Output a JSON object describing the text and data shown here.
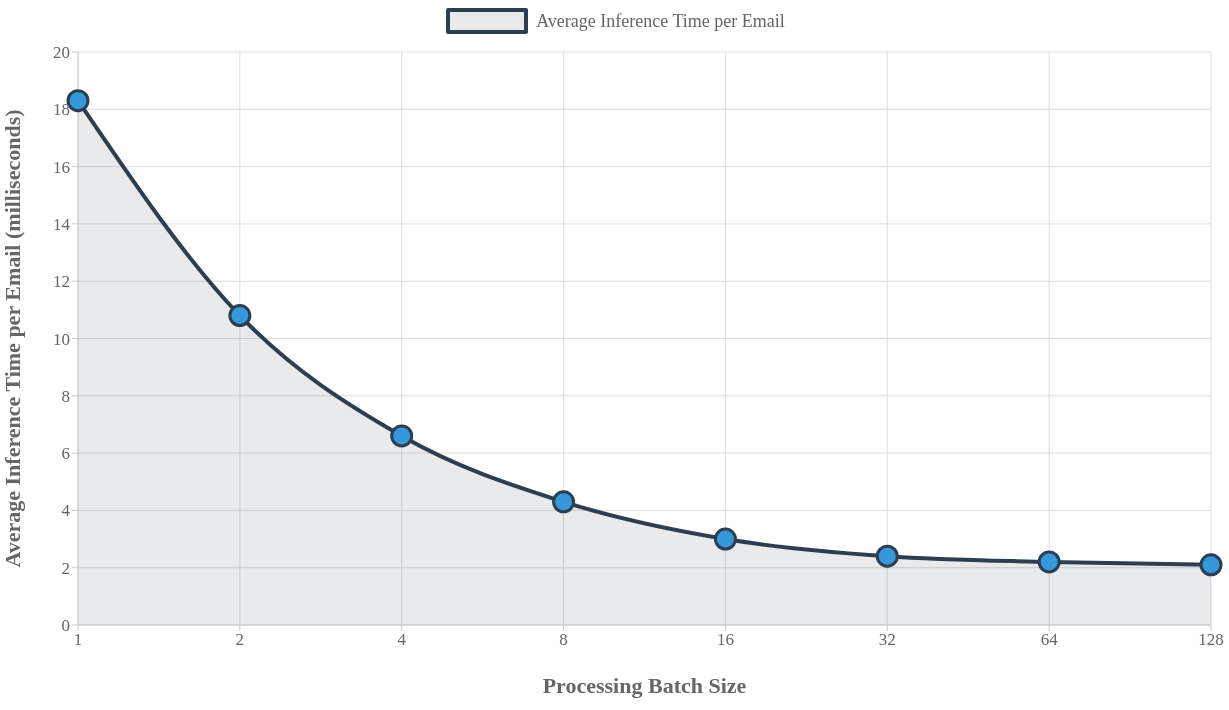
{
  "chart_data": {
    "type": "area",
    "xlabel": "Processing Batch Size",
    "ylabel": "Average Inference Time per Email (milliseconds)",
    "categories": [
      "1",
      "2",
      "4",
      "8",
      "16",
      "32",
      "64",
      "128"
    ],
    "series": [
      {
        "name": "Average Inference Time per Email",
        "color": "#2c3e50",
        "colors": [
          "#3498db",
          "#3498db",
          "#3498db",
          "#3498db",
          "#3498db",
          "#3498db",
          "#3498db",
          "#3498db"
        ],
        "values": [
          18.3,
          10.8,
          6.6,
          4.3,
          3.0,
          2.4,
          2.2,
          2.1
        ]
      }
    ],
    "ylim": [
      0,
      20
    ],
    "yticks": [
      0,
      2,
      4,
      6,
      8,
      10,
      12,
      14,
      16,
      18,
      20
    ],
    "grid": true,
    "legend": "top",
    "marker": "circle"
  }
}
